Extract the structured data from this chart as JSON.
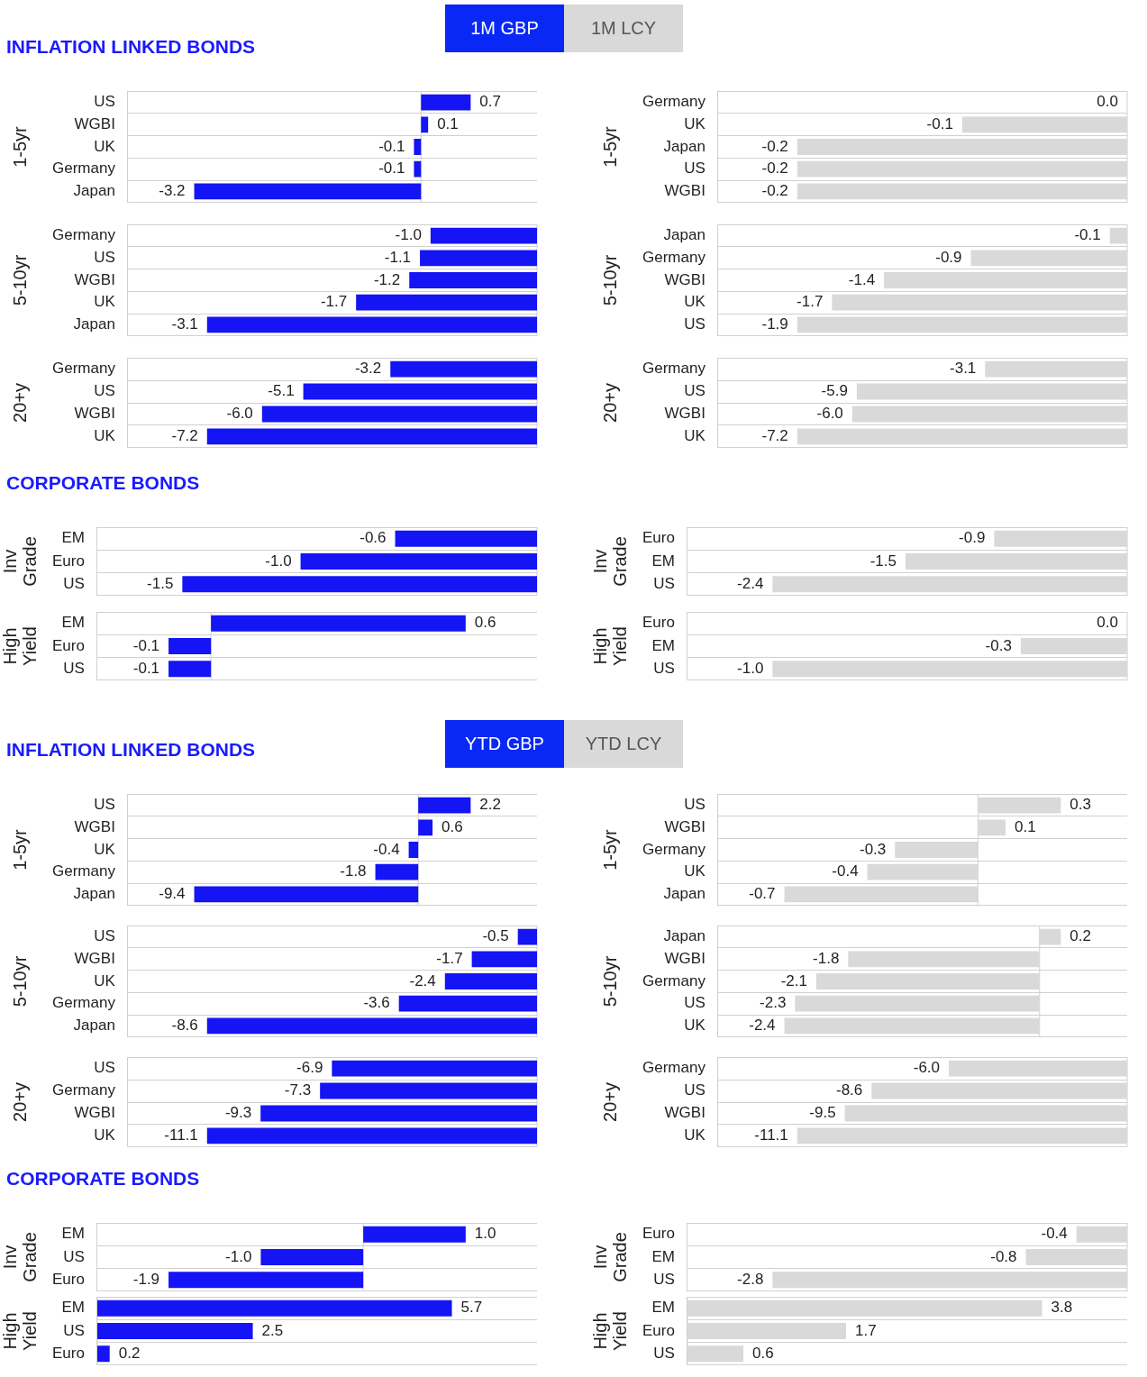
{
  "chart_data": [
    {
      "type": "other",
      "annotations": [
        "1M GBP",
        "1M LCY"
      ]
    },
    {
      "type": "bar",
      "orientation": "horizontal",
      "title": "INFLATION LINKED BONDS",
      "ylabel": "1-5yr",
      "categories": [
        "US",
        "WGBI",
        "UK",
        "Germany",
        "Japan"
      ],
      "values": [
        0.7,
        0.1,
        -0.1,
        -0.1,
        -3.2
      ],
      "value_labels": [
        "0.7",
        "0.1",
        "-0.1",
        "-0.1",
        "-3.2"
      ],
      "color": "#1414f5",
      "grid": "y"
    },
    {
      "type": "bar",
      "orientation": "horizontal",
      "ylabel": "1-5yr",
      "categories": [
        "Germany",
        "UK",
        "Japan",
        "US",
        "WGBI"
      ],
      "values": [
        0.0,
        -0.1,
        -0.2,
        -0.2,
        -0.2
      ],
      "value_labels": [
        "0.0",
        "-0.1",
        "-0.2",
        "-0.2",
        "-0.2"
      ],
      "color": "#d9d9d9",
      "grid": "y"
    },
    {
      "type": "bar",
      "orientation": "horizontal",
      "ylabel": "5-10yr",
      "categories": [
        "Germany",
        "US",
        "WGBI",
        "UK",
        "Japan"
      ],
      "values": [
        -1.0,
        -1.1,
        -1.2,
        -1.7,
        -3.1
      ],
      "value_labels": [
        "-1.0",
        "-1.1",
        "-1.2",
        "-1.7",
        "-3.1"
      ],
      "color": "#1414f5",
      "grid": "y"
    },
    {
      "type": "bar",
      "orientation": "horizontal",
      "ylabel": "5-10yr",
      "categories": [
        "Japan",
        "Germany",
        "WGBI",
        "UK",
        "US"
      ],
      "values": [
        -0.1,
        -0.9,
        -1.4,
        -1.7,
        -1.9
      ],
      "value_labels": [
        "-0.1",
        "-0.9",
        "-1.4",
        "-1.7",
        "-1.9"
      ],
      "color": "#d9d9d9",
      "grid": "y"
    },
    {
      "type": "bar",
      "orientation": "horizontal",
      "ylabel": "20+y",
      "categories": [
        "Germany",
        "US",
        "WGBI",
        "UK"
      ],
      "values": [
        -3.2,
        -5.1,
        -6.0,
        -7.2
      ],
      "value_labels": [
        "-3.2",
        "-5.1",
        "-6.0",
        "-7.2"
      ],
      "color": "#1414f5",
      "grid": "y"
    },
    {
      "type": "bar",
      "orientation": "horizontal",
      "ylabel": "20+y",
      "categories": [
        "Germany",
        "US",
        "WGBI",
        "UK"
      ],
      "values": [
        -3.1,
        -5.9,
        -6.0,
        -7.2
      ],
      "value_labels": [
        "-3.1",
        "-5.9",
        "-6.0",
        "-7.2"
      ],
      "color": "#d9d9d9",
      "grid": "y"
    },
    {
      "type": "bar",
      "orientation": "horizontal",
      "title": "CORPORATE BONDS",
      "ylabel": "Inv Grade",
      "categories": [
        "EM",
        "Euro",
        "US"
      ],
      "values": [
        -0.6,
        -1.0,
        -1.5
      ],
      "value_labels": [
        "-0.6",
        "-1.0",
        "-1.5"
      ],
      "color": "#1414f5",
      "grid": "y"
    },
    {
      "type": "bar",
      "orientation": "horizontal",
      "ylabel": "Inv Grade",
      "categories": [
        "Euro",
        "EM",
        "US"
      ],
      "values": [
        -0.9,
        -1.5,
        -2.4
      ],
      "value_labels": [
        "-0.9",
        "-1.5",
        "-2.4"
      ],
      "color": "#d9d9d9",
      "grid": "y"
    },
    {
      "type": "bar",
      "orientation": "horizontal",
      "ylabel": "High Yield",
      "categories": [
        "EM",
        "Euro",
        "US"
      ],
      "values": [
        0.6,
        -0.1,
        -0.1
      ],
      "value_labels": [
        "0.6",
        "-0.1",
        "-0.1"
      ],
      "color": "#1414f5",
      "grid": "y"
    },
    {
      "type": "bar",
      "orientation": "horizontal",
      "ylabel": "High Yield",
      "categories": [
        "Euro",
        "EM",
        "US"
      ],
      "values": [
        0.0,
        -0.3,
        -1.0
      ],
      "value_labels": [
        "0.0",
        "-0.3",
        "-1.0"
      ],
      "color": "#d9d9d9",
      "grid": "y"
    },
    {
      "type": "other",
      "annotations": [
        "YTD GBP",
        "YTD LCY"
      ]
    },
    {
      "type": "bar",
      "orientation": "horizontal",
      "title": "INFLATION LINKED BONDS",
      "ylabel": "1-5yr",
      "categories": [
        "US",
        "WGBI",
        "UK",
        "Germany",
        "Japan"
      ],
      "values": [
        2.2,
        0.6,
        -0.4,
        -1.8,
        -9.4
      ],
      "value_labels": [
        "2.2",
        "0.6",
        "-0.4",
        "-1.8",
        "-9.4"
      ],
      "color": "#1414f5",
      "grid": "y"
    },
    {
      "type": "bar",
      "orientation": "horizontal",
      "ylabel": "1-5yr",
      "categories": [
        "US",
        "WGBI",
        "Germany",
        "UK",
        "Japan"
      ],
      "values": [
        0.3,
        0.1,
        -0.3,
        -0.4,
        -0.7
      ],
      "value_labels": [
        "0.3",
        "0.1",
        "-0.3",
        "-0.4",
        "-0.7"
      ],
      "color": "#d9d9d9",
      "grid": "y"
    },
    {
      "type": "bar",
      "orientation": "horizontal",
      "ylabel": "5-10yr",
      "categories": [
        "US",
        "WGBI",
        "UK",
        "Germany",
        "Japan"
      ],
      "values": [
        -0.5,
        -1.7,
        -2.4,
        -3.6,
        -8.6
      ],
      "value_labels": [
        "-0.5",
        "-1.7",
        "-2.4",
        "-3.6",
        "-8.6"
      ],
      "color": "#1414f5",
      "grid": "y"
    },
    {
      "type": "bar",
      "orientation": "horizontal",
      "ylabel": "5-10yr",
      "categories": [
        "Japan",
        "WGBI",
        "Germany",
        "US",
        "UK"
      ],
      "values": [
        0.2,
        -1.8,
        -2.1,
        -2.3,
        -2.4
      ],
      "value_labels": [
        "0.2",
        "-1.8",
        "-2.1",
        "-2.3",
        "-2.4"
      ],
      "color": "#d9d9d9",
      "grid": "y"
    },
    {
      "type": "bar",
      "orientation": "horizontal",
      "ylabel": "20+y",
      "categories": [
        "US",
        "Germany",
        "WGBI",
        "UK"
      ],
      "values": [
        -6.9,
        -7.3,
        -9.3,
        -11.1
      ],
      "value_labels": [
        "-6.9",
        "-7.3",
        "-9.3",
        "-11.1"
      ],
      "color": "#1414f5",
      "grid": "y"
    },
    {
      "type": "bar",
      "orientation": "horizontal",
      "ylabel": "20+y",
      "categories": [
        "Germany",
        "US",
        "WGBI",
        "UK"
      ],
      "values": [
        -6.0,
        -8.6,
        -9.5,
        -11.1
      ],
      "value_labels": [
        "-6.0",
        "-8.6",
        "-9.5",
        "-11.1"
      ],
      "color": "#d9d9d9",
      "grid": "y"
    },
    {
      "type": "bar",
      "orientation": "horizontal",
      "title": "CORPORATE BONDS",
      "ylabel": "Inv Grade",
      "categories": [
        "EM",
        "US",
        "Euro"
      ],
      "values": [
        1.0,
        -1.0,
        -1.9
      ],
      "value_labels": [
        "1.0",
        "-1.0",
        "-1.9"
      ],
      "color": "#1414f5",
      "grid": "y"
    },
    {
      "type": "bar",
      "orientation": "horizontal",
      "ylabel": "Inv Grade",
      "categories": [
        "Euro",
        "EM",
        "US"
      ],
      "values": [
        -0.4,
        -0.8,
        -2.8
      ],
      "value_labels": [
        "-0.4",
        "-0.8",
        "-2.8"
      ],
      "color": "#d9d9d9",
      "grid": "y"
    },
    {
      "type": "bar",
      "orientation": "horizontal",
      "ylabel": "High Yield",
      "categories": [
        "EM",
        "US",
        "Euro"
      ],
      "values": [
        5.7,
        2.5,
        0.2
      ],
      "value_labels": [
        "5.7",
        "2.5",
        "0.2"
      ],
      "color": "#1414f5",
      "grid": "y"
    },
    {
      "type": "bar",
      "orientation": "horizontal",
      "ylabel": "High Yield",
      "categories": [
        "EM",
        "Euro",
        "US"
      ],
      "values": [
        3.8,
        1.7,
        0.6
      ],
      "value_labels": [
        "3.8",
        "1.7",
        "0.6"
      ],
      "color": "#d9d9d9",
      "grid": "y"
    }
  ]
}
